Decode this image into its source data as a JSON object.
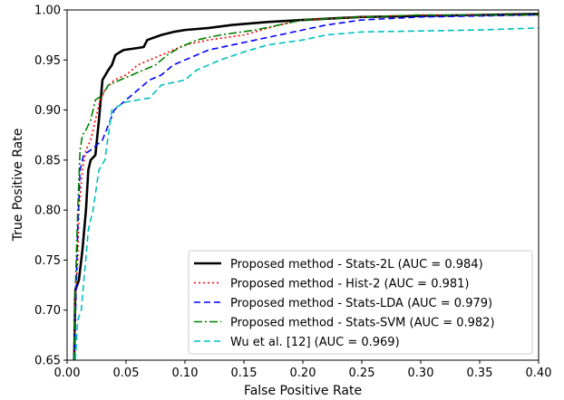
{
  "chart_data": {
    "type": "line",
    "title": "",
    "xlabel": "False Positive Rate",
    "ylabel": "True Positive Rate",
    "xlim": [
      0.0,
      0.4
    ],
    "ylim": [
      0.65,
      1.0
    ],
    "xticks": [
      0.0,
      0.05,
      0.1,
      0.15,
      0.2,
      0.25,
      0.3,
      0.35,
      0.4
    ],
    "yticks": [
      0.65,
      0.7,
      0.75,
      0.8,
      0.85,
      0.9,
      0.95,
      1.0
    ],
    "xtick_labels": [
      "0.00",
      "0.05",
      "0.10",
      "0.15",
      "0.20",
      "0.25",
      "0.30",
      "0.35",
      "0.40"
    ],
    "ytick_labels": [
      "0.65",
      "0.70",
      "0.75",
      "0.80",
      "0.85",
      "0.90",
      "0.95",
      "1.00"
    ],
    "grid": false,
    "legend_position": "lower-right",
    "series": [
      {
        "name": "Proposed method - Stats-2L (AUC = 0.984)",
        "color": "#000000",
        "style": "solid",
        "points": [
          [
            0.006,
            0.65
          ],
          [
            0.007,
            0.72
          ],
          [
            0.01,
            0.73
          ],
          [
            0.013,
            0.76
          ],
          [
            0.016,
            0.8
          ],
          [
            0.018,
            0.84
          ],
          [
            0.02,
            0.85
          ],
          [
            0.024,
            0.855
          ],
          [
            0.027,
            0.89
          ],
          [
            0.03,
            0.93
          ],
          [
            0.035,
            0.94
          ],
          [
            0.038,
            0.945
          ],
          [
            0.041,
            0.955
          ],
          [
            0.045,
            0.958
          ],
          [
            0.048,
            0.96
          ],
          [
            0.06,
            0.962
          ],
          [
            0.065,
            0.963
          ],
          [
            0.068,
            0.97
          ],
          [
            0.08,
            0.975
          ],
          [
            0.09,
            0.978
          ],
          [
            0.1,
            0.98
          ],
          [
            0.12,
            0.982
          ],
          [
            0.14,
            0.985
          ],
          [
            0.17,
            0.988
          ],
          [
            0.2,
            0.99
          ],
          [
            0.25,
            0.993
          ],
          [
            0.3,
            0.994
          ],
          [
            0.35,
            0.995
          ],
          [
            0.4,
            0.996
          ]
        ]
      },
      {
        "name": "Proposed method - Hist-2 (AUC = 0.981)",
        "color": "#ff0000",
        "style": "dotted",
        "points": [
          [
            0.006,
            0.65
          ],
          [
            0.007,
            0.71
          ],
          [
            0.009,
            0.75
          ],
          [
            0.01,
            0.8
          ],
          [
            0.013,
            0.84
          ],
          [
            0.016,
            0.86
          ],
          [
            0.02,
            0.87
          ],
          [
            0.024,
            0.89
          ],
          [
            0.028,
            0.91
          ],
          [
            0.032,
            0.92
          ],
          [
            0.04,
            0.93
          ],
          [
            0.05,
            0.935
          ],
          [
            0.06,
            0.945
          ],
          [
            0.07,
            0.95
          ],
          [
            0.08,
            0.955
          ],
          [
            0.09,
            0.96
          ],
          [
            0.1,
            0.965
          ],
          [
            0.12,
            0.97
          ],
          [
            0.15,
            0.975
          ],
          [
            0.18,
            0.985
          ],
          [
            0.2,
            0.99
          ],
          [
            0.25,
            0.993
          ],
          [
            0.3,
            0.995
          ],
          [
            0.35,
            0.995
          ],
          [
            0.4,
            0.995
          ]
        ]
      },
      {
        "name": "Proposed method - Stats-LDA (AUC = 0.979)",
        "color": "#0000ff",
        "style": "dashed",
        "points": [
          [
            0.006,
            0.65
          ],
          [
            0.007,
            0.69
          ],
          [
            0.009,
            0.78
          ],
          [
            0.011,
            0.84
          ],
          [
            0.014,
            0.855
          ],
          [
            0.02,
            0.86
          ],
          [
            0.03,
            0.87
          ],
          [
            0.04,
            0.9
          ],
          [
            0.05,
            0.91
          ],
          [
            0.06,
            0.92
          ],
          [
            0.07,
            0.93
          ],
          [
            0.08,
            0.935
          ],
          [
            0.09,
            0.945
          ],
          [
            0.1,
            0.95
          ],
          [
            0.12,
            0.96
          ],
          [
            0.14,
            0.965
          ],
          [
            0.16,
            0.97
          ],
          [
            0.18,
            0.975
          ],
          [
            0.2,
            0.98
          ],
          [
            0.22,
            0.985
          ],
          [
            0.25,
            0.99
          ],
          [
            0.3,
            0.993
          ],
          [
            0.35,
            0.994
          ],
          [
            0.4,
            0.995
          ]
        ]
      },
      {
        "name": "Proposed method - Stats-SVM (AUC = 0.982)",
        "color": "#008000",
        "style": "dashdot",
        "points": [
          [
            0.006,
            0.65
          ],
          [
            0.007,
            0.72
          ],
          [
            0.009,
            0.8
          ],
          [
            0.011,
            0.86
          ],
          [
            0.013,
            0.875
          ],
          [
            0.016,
            0.88
          ],
          [
            0.02,
            0.89
          ],
          [
            0.024,
            0.91
          ],
          [
            0.03,
            0.915
          ],
          [
            0.035,
            0.925
          ],
          [
            0.045,
            0.93
          ],
          [
            0.055,
            0.935
          ],
          [
            0.065,
            0.94
          ],
          [
            0.075,
            0.945
          ],
          [
            0.085,
            0.955
          ],
          [
            0.095,
            0.962
          ],
          [
            0.11,
            0.97
          ],
          [
            0.13,
            0.975
          ],
          [
            0.16,
            0.98
          ],
          [
            0.18,
            0.985
          ],
          [
            0.2,
            0.99
          ],
          [
            0.25,
            0.993
          ],
          [
            0.3,
            0.995
          ],
          [
            0.35,
            0.995
          ],
          [
            0.4,
            0.995
          ]
        ]
      },
      {
        "name": "Wu et al. [12] (AUC = 0.969)",
        "color": "#00bfbf",
        "style": "dashed",
        "points": [
          [
            0.007,
            0.65
          ],
          [
            0.009,
            0.69
          ],
          [
            0.012,
            0.7
          ],
          [
            0.015,
            0.74
          ],
          [
            0.018,
            0.78
          ],
          [
            0.022,
            0.8
          ],
          [
            0.027,
            0.84
          ],
          [
            0.032,
            0.85
          ],
          [
            0.038,
            0.9
          ],
          [
            0.045,
            0.905
          ],
          [
            0.05,
            0.908
          ],
          [
            0.06,
            0.91
          ],
          [
            0.07,
            0.912
          ],
          [
            0.08,
            0.925
          ],
          [
            0.1,
            0.93
          ],
          [
            0.11,
            0.94
          ],
          [
            0.13,
            0.95
          ],
          [
            0.15,
            0.958
          ],
          [
            0.17,
            0.965
          ],
          [
            0.2,
            0.97
          ],
          [
            0.22,
            0.975
          ],
          [
            0.25,
            0.978
          ],
          [
            0.3,
            0.979
          ],
          [
            0.35,
            0.98
          ],
          [
            0.4,
            0.982
          ]
        ]
      }
    ]
  }
}
